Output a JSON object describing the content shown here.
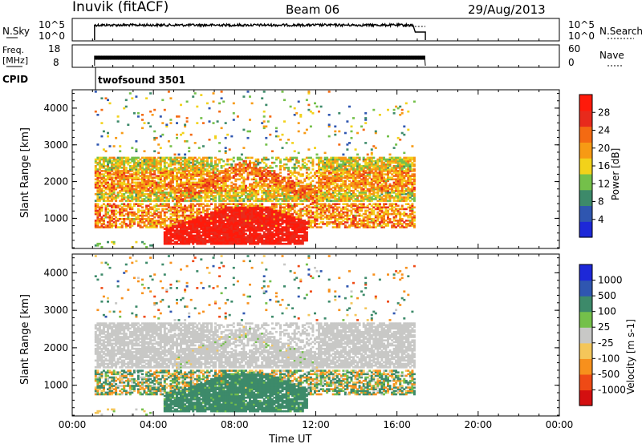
{
  "header": {
    "title": "Inuvik (fitACF)",
    "beam": "Beam 06",
    "date": "29/Aug/2013"
  },
  "noise_panel": {
    "left_label": "N.Sky",
    "left_ticks": [
      "10^5",
      "10^0"
    ],
    "right_ticks": [
      "10^5",
      "10^0"
    ],
    "right_label": "N.Search"
  },
  "freq_panel": {
    "left_label_line1": "Freq.",
    "left_label_line2": "[MHz]",
    "left_ticks": [
      "18",
      "8"
    ],
    "right_ticks": [
      "60",
      "0"
    ],
    "right_label": "Nave"
  },
  "cpid": {
    "label": "CPID",
    "program": "twofsound 3501"
  },
  "colors": {
    "power_scale": [
      "#1d28d8",
      "#2f56b0",
      "#3d8a6a",
      "#74c04a",
      "#f2d21a",
      "#f79a14",
      "#f46a12",
      "#e82a1c",
      "#ff1a0a"
    ],
    "velocity_scale": [
      "#d40f10",
      "#ef4a15",
      "#f7901c",
      "#f4c65a",
      "#c8c8c6",
      "#74c04a",
      "#3d8a6a",
      "#2f56b0",
      "#1d28d8"
    ]
  },
  "chart_data": [
    {
      "type": "heatmap",
      "title": "Power",
      "ylabel": "Slant Range [km]",
      "xlabel": "",
      "yticks": [
        "1000",
        "2000",
        "3000",
        "4000"
      ],
      "ylim": [
        180,
        4500
      ],
      "xlim": [
        0,
        24
      ],
      "data_extent_hours": [
        1.1,
        16.8
      ],
      "colorbar": {
        "label": "Power [dB]",
        "ticks": [
          "4",
          "8",
          "12",
          "16",
          "20",
          "24",
          "28"
        ],
        "range": [
          0,
          32
        ]
      },
      "bands": [
        {
          "range_km": [
            1500,
            2600
          ],
          "power_db": 16,
          "description_level": "mid"
        },
        {
          "range_km": [
            300,
            1400
          ],
          "power_db": 26,
          "description_level": "high"
        },
        {
          "range_km": [
            200,
            700
          ],
          "power_db": 30,
          "description_level": "peak_near_08UT"
        }
      ]
    },
    {
      "type": "heatmap",
      "title": "Velocity",
      "ylabel": "Slant Range [km]",
      "xlabel": "Time UT",
      "xticks": [
        "00:00",
        "04:00",
        "08:00",
        "12:00",
        "16:00",
        "20:00",
        "00:00"
      ],
      "yticks": [
        "1000",
        "2000",
        "3000",
        "4000"
      ],
      "ylim": [
        180,
        4500
      ],
      "xlim": [
        0,
        24
      ],
      "colorbar": {
        "label": "Velocity [m s-1]",
        "ticks": [
          "1000",
          "500",
          "100",
          "25",
          "-25",
          "-100",
          "-500",
          "-1000"
        ],
        "range": [
          -1500,
          1500
        ]
      },
      "bands": [
        {
          "range_km": [
            1500,
            2600
          ],
          "velocity_ms": 0,
          "description_level": "near-zero grey"
        },
        {
          "range_km": [
            300,
            1400
          ],
          "velocity_ms": 150,
          "description_level": "green/orange"
        }
      ]
    }
  ]
}
